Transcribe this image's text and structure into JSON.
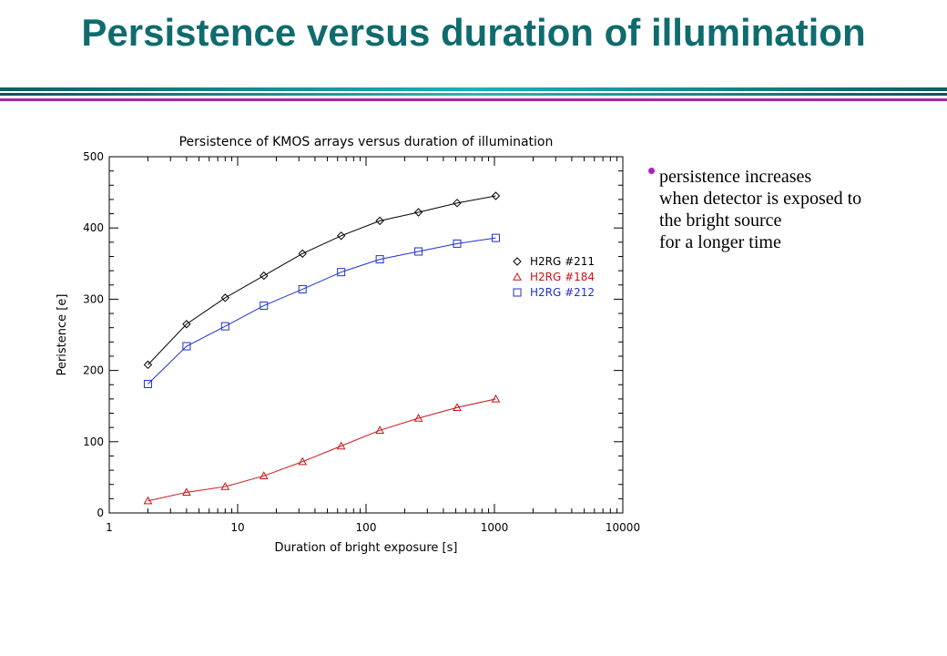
{
  "slide": {
    "title": "Persistence versus duration of illumination",
    "bullet": {
      "lines": [
        "persistence increases",
        "when detector is exposed to",
        "the bright source",
        "for a longer time"
      ]
    }
  },
  "colors": {
    "title": "#0f6b6e",
    "bullet_dot": "#b01ec2",
    "series_211": "#000000",
    "series_184": "#c81414",
    "series_212": "#1e32c8"
  },
  "chart_data": {
    "type": "line",
    "title": "Persistence of KMOS arrays versus duration of illumination",
    "xlabel": "Duration of bright exposure [s]",
    "ylabel": "Peristence [e]",
    "xscale": "log",
    "xlim": [
      1,
      10000
    ],
    "ylim": [
      0,
      500
    ],
    "xticks": [
      "1",
      "10",
      "100",
      "1000",
      "10000"
    ],
    "yticks": [
      "0",
      "100",
      "200",
      "300",
      "400",
      "500"
    ],
    "legend_position": "right-middle",
    "x": [
      2,
      4,
      8,
      16,
      32,
      64,
      128,
      256,
      512,
      1024
    ],
    "series": [
      {
        "name": "H2RG #211",
        "marker": "diamond",
        "values": [
          208,
          265,
          302,
          333,
          364,
          389,
          410,
          422,
          435,
          445
        ]
      },
      {
        "name": "H2RG #184",
        "marker": "triangle",
        "values": [
          17,
          29,
          37,
          52,
          72,
          94,
          116,
          133,
          148,
          160
        ]
      },
      {
        "name": "H2RG #212",
        "marker": "square",
        "values": [
          181,
          234,
          262,
          291,
          314,
          338,
          356,
          367,
          378,
          386
        ]
      }
    ]
  }
}
